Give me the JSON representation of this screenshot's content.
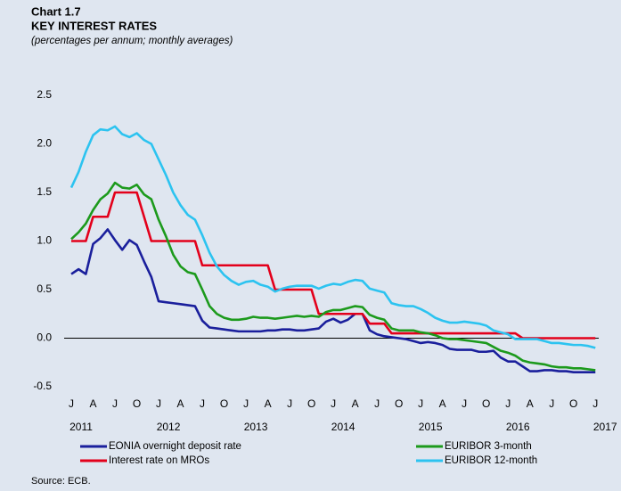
{
  "chart_data": {
    "type": "line",
    "chart_label": "Chart 1.7",
    "title": "KEY INTEREST RATES",
    "subtitle": "(percentages per annum; monthly averages)",
    "source": "Source: ECB.",
    "categories": [
      "J",
      null,
      null,
      "A",
      null,
      null,
      "J",
      null,
      null,
      "O",
      null,
      null,
      "J",
      null,
      null,
      "A",
      null,
      null,
      "J",
      null,
      null,
      "O",
      null,
      null,
      "J",
      null,
      null,
      "A",
      null,
      null,
      "J",
      null,
      null,
      "O",
      null,
      null,
      "J",
      null,
      null,
      "A",
      null,
      null,
      "J",
      null,
      null,
      "O",
      null,
      null,
      "J",
      null,
      null,
      "A",
      null,
      null,
      "J",
      null,
      null,
      "O",
      null,
      null,
      "J",
      null,
      null,
      "A",
      null,
      null,
      "J",
      null,
      null,
      "O",
      null,
      null,
      "J"
    ],
    "years": [
      "2011",
      "2012",
      "2013",
      "2014",
      "2015",
      "2016",
      "2017"
    ],
    "ylim": [
      -0.5,
      2.5
    ],
    "yticks": [
      -0.5,
      0.5,
      {
        "value": 0,
        "label": "0.0"
      },
      {
        "value": 1,
        "label": "1.0"
      },
      1.5,
      {
        "value": 2,
        "label": "2.0"
      },
      2.5
    ],
    "zero_line": true,
    "series": [
      {
        "name": "EONIA overnight deposit rate",
        "color": "#1a1f9c",
        "values": [
          0.66,
          0.71,
          0.66,
          0.97,
          1.03,
          1.12,
          1.01,
          0.91,
          1.01,
          0.96,
          0.79,
          0.63,
          0.38,
          0.37,
          0.36,
          0.35,
          0.34,
          0.33,
          0.18,
          0.11,
          0.1,
          0.09,
          0.08,
          0.07,
          0.07,
          0.07,
          0.07,
          0.08,
          0.08,
          0.09,
          0.09,
          0.08,
          0.08,
          0.09,
          0.1,
          0.17,
          0.2,
          0.16,
          0.19,
          0.25,
          0.25,
          0.08,
          0.04,
          0.02,
          0.01,
          0.0,
          -0.01,
          -0.03,
          -0.05,
          -0.04,
          -0.05,
          -0.07,
          -0.11,
          -0.12,
          -0.12,
          -0.12,
          -0.14,
          -0.14,
          -0.13,
          -0.2,
          -0.24,
          -0.24,
          -0.29,
          -0.34,
          -0.34,
          -0.33,
          -0.33,
          -0.34,
          -0.34,
          -0.35,
          -0.35,
          -0.35,
          -0.35
        ]
      },
      {
        "name": "Interest rate on MROs",
        "color": "#e3001b",
        "values": [
          1.0,
          1.0,
          1.0,
          1.25,
          1.25,
          1.25,
          1.5,
          1.5,
          1.5,
          1.5,
          1.25,
          1.0,
          1.0,
          1.0,
          1.0,
          1.0,
          1.0,
          1.0,
          0.75,
          0.75,
          0.75,
          0.75,
          0.75,
          0.75,
          0.75,
          0.75,
          0.75,
          0.75,
          0.5,
          0.5,
          0.5,
          0.5,
          0.5,
          0.5,
          0.25,
          0.25,
          0.25,
          0.25,
          0.25,
          0.25,
          0.25,
          0.15,
          0.15,
          0.15,
          0.05,
          0.05,
          0.05,
          0.05,
          0.05,
          0.05,
          0.05,
          0.05,
          0.05,
          0.05,
          0.05,
          0.05,
          0.05,
          0.05,
          0.05,
          0.05,
          0.05,
          0.05,
          0.0,
          0.0,
          0.0,
          0.0,
          0.0,
          0.0,
          0.0,
          0.0,
          0.0,
          0.0,
          0.0
        ]
      },
      {
        "name": "EURIBOR 3-month",
        "color": "#1c9a1c",
        "values": [
          1.02,
          1.09,
          1.18,
          1.32,
          1.43,
          1.49,
          1.6,
          1.55,
          1.54,
          1.58,
          1.48,
          1.43,
          1.22,
          1.05,
          0.86,
          0.74,
          0.68,
          0.66,
          0.5,
          0.33,
          0.25,
          0.21,
          0.19,
          0.19,
          0.2,
          0.22,
          0.21,
          0.21,
          0.2,
          0.21,
          0.22,
          0.23,
          0.22,
          0.23,
          0.22,
          0.27,
          0.29,
          0.29,
          0.31,
          0.33,
          0.32,
          0.24,
          0.21,
          0.19,
          0.1,
          0.08,
          0.08,
          0.08,
          0.06,
          0.05,
          0.03,
          0.0,
          -0.01,
          -0.01,
          -0.02,
          -0.03,
          -0.04,
          -0.05,
          -0.09,
          -0.13,
          -0.15,
          -0.18,
          -0.23,
          -0.25,
          -0.26,
          -0.27,
          -0.29,
          -0.3,
          -0.3,
          -0.31,
          -0.31,
          -0.32,
          -0.33
        ]
      },
      {
        "name": "EURIBOR 12-month",
        "color": "#2cc3f0",
        "values": [
          1.55,
          1.71,
          1.92,
          2.09,
          2.15,
          2.14,
          2.18,
          2.1,
          2.07,
          2.11,
          2.04,
          2.0,
          1.84,
          1.68,
          1.5,
          1.37,
          1.27,
          1.22,
          1.06,
          0.88,
          0.74,
          0.65,
          0.59,
          0.55,
          0.58,
          0.59,
          0.55,
          0.53,
          0.48,
          0.51,
          0.53,
          0.54,
          0.54,
          0.54,
          0.51,
          0.54,
          0.56,
          0.55,
          0.58,
          0.6,
          0.59,
          0.51,
          0.49,
          0.47,
          0.36,
          0.34,
          0.33,
          0.33,
          0.3,
          0.26,
          0.21,
          0.18,
          0.16,
          0.16,
          0.17,
          0.16,
          0.15,
          0.13,
          0.08,
          0.06,
          0.04,
          -0.01,
          -0.01,
          -0.01,
          -0.01,
          -0.03,
          -0.05,
          -0.05,
          -0.06,
          -0.07,
          -0.07,
          -0.08,
          -0.1
        ]
      }
    ]
  }
}
